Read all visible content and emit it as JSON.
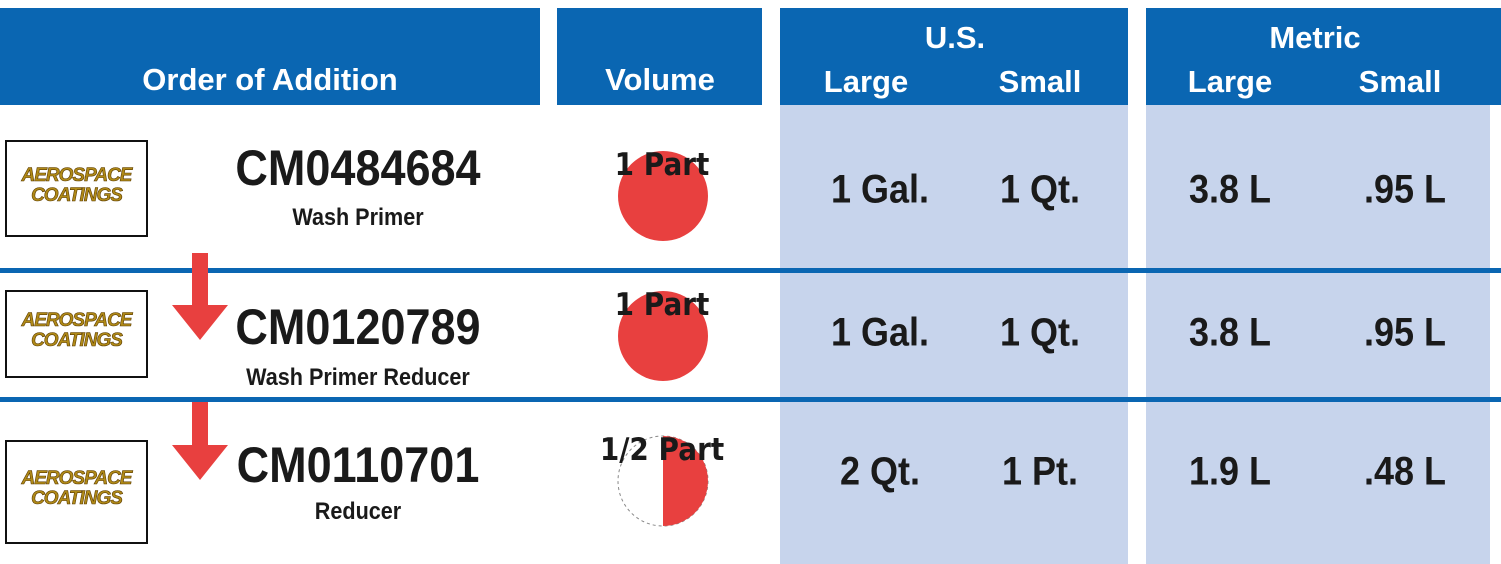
{
  "header": {
    "order": "Order of Addition",
    "volume": "Volume",
    "us": "U.S.",
    "metric": "Metric",
    "us_large": "Large",
    "us_small": "Small",
    "metric_large": "Large",
    "metric_small": "Small"
  },
  "rows": [
    {
      "logo": [
        "AEROSPACE",
        "COATINGS"
      ],
      "code": "CM0484684",
      "name": "Wash Primer",
      "volume": "1 Part",
      "us_large": "1 Gal.",
      "us_small": "1 Qt.",
      "metric_large": "3.8 L",
      "metric_small": ".95 L"
    },
    {
      "logo": [
        "AEROSPACE",
        "COATINGS"
      ],
      "code": "CM0120789",
      "name": "Wash Primer Reducer",
      "volume": "1 Part",
      "us_large": "1 Gal.",
      "us_small": "1 Qt.",
      "metric_large": "3.8 L",
      "metric_small": ".95 L"
    },
    {
      "logo": [
        "AEROSPACE",
        "COATINGS"
      ],
      "code": "CM0110701",
      "name": "Reducer",
      "volume": "1/2 Part",
      "us_large": "2 Qt.",
      "us_small": "1 Pt.",
      "metric_large": "1.9 L",
      "metric_small": ".48 L"
    }
  ]
}
